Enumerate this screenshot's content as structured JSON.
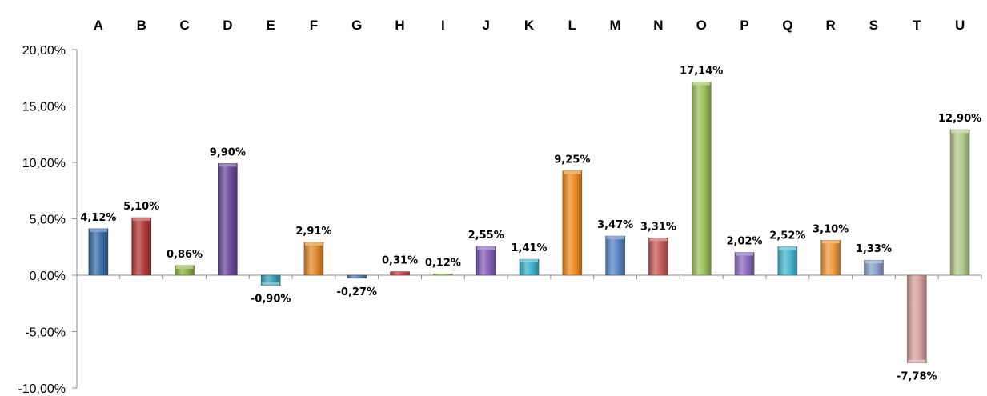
{
  "chart_data": {
    "type": "bar",
    "categories": [
      "A",
      "B",
      "C",
      "D",
      "E",
      "F",
      "G",
      "H",
      "I",
      "J",
      "K",
      "L",
      "M",
      "N",
      "O",
      "P",
      "Q",
      "R",
      "S",
      "T",
      "U"
    ],
    "values": [
      4.12,
      5.1,
      0.86,
      9.9,
      -0.9,
      2.91,
      -0.27,
      0.31,
      0.12,
      2.55,
      1.41,
      9.25,
      3.47,
      3.31,
      17.14,
      2.02,
      2.52,
      3.1,
      1.33,
      -7.78,
      12.9
    ],
    "data_labels": [
      "4,12%",
      "5,10%",
      "0,86%",
      "9,90%",
      "-0,90%",
      "2,91%",
      "-0,27%",
      "0,31%",
      "0,12%",
      "2,55%",
      "1,41%",
      "9,25%",
      "3,47%",
      "3,31%",
      "17,14%",
      "2,02%",
      "2,52%",
      "3,10%",
      "1,33%",
      "-7,78%",
      "12,90%"
    ],
    "y_ticks": [
      20,
      15,
      10,
      5,
      0,
      -5,
      -10
    ],
    "y_tick_labels": [
      "20,00%",
      "15,00%",
      "10,00%",
      "5,00%",
      "0,00%",
      "-5,00%",
      "-10,00%"
    ],
    "ylim": [
      -10,
      20
    ],
    "category_axis_position": "top",
    "grid": false,
    "legend": "none",
    "title": "",
    "xlabel": "",
    "ylabel": "",
    "colors": [
      "#3b6ea8",
      "#b03a3a",
      "#8fb04a",
      "#6b4a9a",
      "#3aa0b8",
      "#e08a2e",
      "#5b7fb0",
      "#d04b4b",
      "#a7c46a",
      "#8560b8",
      "#3cb4cc",
      "#f08c20",
      "#5a86c6",
      "#c65a5a",
      "#9dc060",
      "#8a6cbc",
      "#49b6cf",
      "#f29a3e",
      "#8aa2c8",
      "#d9a0a0",
      "#b4c88e"
    ]
  }
}
